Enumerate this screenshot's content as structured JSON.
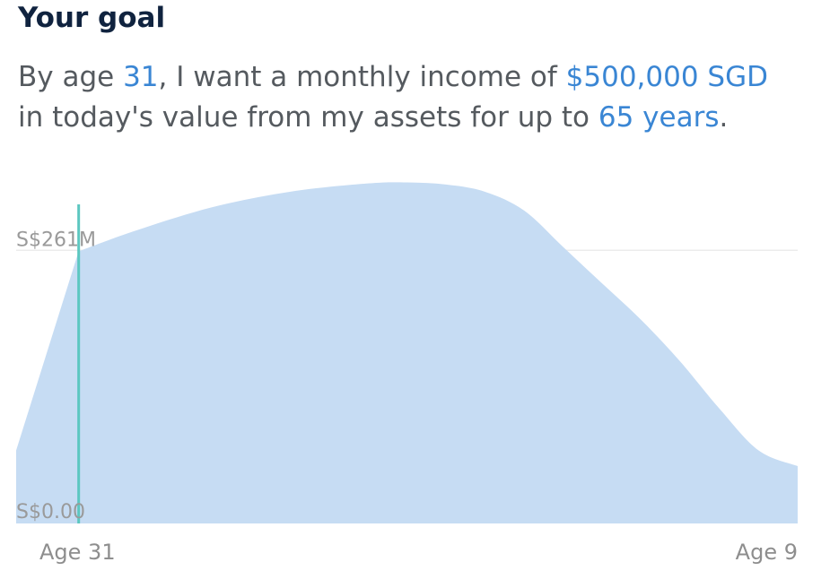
{
  "goal": {
    "title": "Your goal",
    "sentence": {
      "prefix": "By age ",
      "age": "31",
      "middle": ", I want a monthly income of ",
      "income": "$500,000 SGD",
      "line2_prefix": "in today's value from my assets for up to ",
      "years": "65 years",
      "suffix": "."
    }
  },
  "colors": {
    "title": "#10233f",
    "body_text": "#555a5f",
    "value_text": "#3a86d4",
    "area_fill": "#c6dcf3",
    "marker_line": "#5cc7c0",
    "gridline": "#ececec"
  },
  "chart_data": {
    "type": "area",
    "y_tick_labels": [
      "S$0.00",
      "S$261M"
    ],
    "x_tick_labels": [
      "Age 31",
      "Age 9"
    ],
    "ylim": [
      0,
      330
    ],
    "marker_label": "Age 31",
    "x": [
      0,
      0.08,
      0.15,
      0.25,
      0.35,
      0.45,
      0.5,
      0.55,
      0.6,
      0.65,
      0.7,
      0.75,
      0.8,
      0.85,
      0.9,
      0.95,
      1.0
    ],
    "values": [
      70,
      261,
      280,
      303,
      318,
      326,
      327,
      325,
      318,
      300,
      265,
      230,
      195,
      155,
      110,
      70,
      55
    ],
    "grid": "horizontal",
    "series": [
      {
        "values": [
          70,
          261,
          280,
          303,
          318,
          326,
          327,
          325,
          318,
          300,
          265,
          230,
          195,
          155,
          110,
          70,
          55
        ]
      }
    ]
  }
}
